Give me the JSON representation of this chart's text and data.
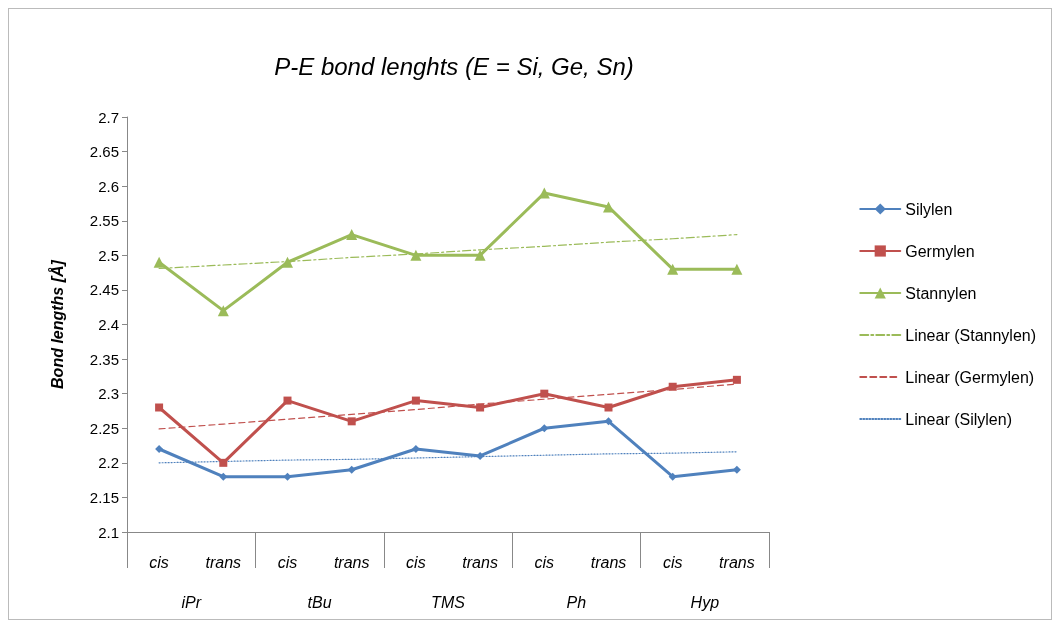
{
  "chart_data": {
    "type": "line",
    "title": "P-E bond lenghts (E = Si, Ge, Sn)",
    "ylabel": "Bond lengths [Å]",
    "categories": [
      "cis",
      "trans",
      "cis",
      "trans",
      "cis",
      "trans",
      "cis",
      "trans",
      "cis",
      "trans"
    ],
    "annotations": [
      "iPr",
      "tBu",
      "TMS",
      "Ph",
      "Hyp"
    ],
    "ylim": [
      2.1,
      2.7
    ],
    "yticks": [
      2.1,
      2.15,
      2.2,
      2.25,
      2.3,
      2.35,
      2.4,
      2.45,
      2.5,
      2.55,
      2.6,
      2.65,
      2.7
    ],
    "grid": false,
    "legend": "right",
    "series": [
      {
        "name": "Silylen",
        "color": "#4f81bd",
        "marker": "diamond",
        "line_style": "solid",
        "values": [
          2.22,
          2.18,
          2.18,
          2.19,
          2.22,
          2.21,
          2.25,
          2.26,
          2.18,
          2.19
        ]
      },
      {
        "name": "Germylen",
        "color": "#c0504d",
        "marker": "square",
        "line_style": "solid",
        "values": [
          2.28,
          2.2,
          2.29,
          2.26,
          2.29,
          2.28,
          2.3,
          2.28,
          2.31,
          2.32
        ]
      },
      {
        "name": "Stannylen",
        "color": "#9bbb59",
        "marker": "triangle",
        "line_style": "solid",
        "values": [
          2.49,
          2.42,
          2.49,
          2.53,
          2.5,
          2.5,
          2.59,
          2.57,
          2.48,
          2.48
        ]
      },
      {
        "name": "Linear (Stannylen)",
        "color": "#9bbb59",
        "marker": "none",
        "line_style": "dashdot",
        "values": [
          2.481,
          2.486,
          2.491,
          2.497,
          2.502,
          2.508,
          2.513,
          2.519,
          2.524,
          2.53
        ]
      },
      {
        "name": "Linear (Germylen)",
        "color": "#c0504d",
        "marker": "none",
        "line_style": "dashed",
        "values": [
          2.249,
          2.256,
          2.263,
          2.27,
          2.277,
          2.285,
          2.292,
          2.299,
          2.306,
          2.314
        ]
      },
      {
        "name": "Linear (Silylen)",
        "color": "#4f81bd",
        "marker": "none",
        "line_style": "dotted",
        "values": [
          2.2,
          2.202,
          2.204,
          2.205,
          2.207,
          2.209,
          2.211,
          2.213,
          2.214,
          2.216
        ]
      }
    ]
  }
}
